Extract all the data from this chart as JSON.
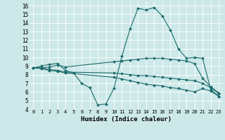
{
  "xlabel": "Humidex (Indice chaleur)",
  "xlim": [
    -0.5,
    23.5
  ],
  "ylim": [
    4,
    16.5
  ],
  "xticks": [
    0,
    1,
    2,
    3,
    4,
    5,
    6,
    7,
    8,
    9,
    10,
    11,
    12,
    13,
    14,
    15,
    16,
    17,
    18,
    19,
    20,
    21,
    22,
    23
  ],
  "yticks": [
    4,
    5,
    6,
    7,
    8,
    9,
    10,
    11,
    12,
    13,
    14,
    15,
    16
  ],
  "bg_color": "#cde8e8",
  "line_color": "#1a6b6b",
  "grid_color": "#ffffff",
  "lines": [
    {
      "x": [
        0,
        1,
        2,
        3,
        4,
        5,
        6,
        7,
        8,
        9,
        10,
        11,
        12,
        13,
        14,
        15,
        16,
        17,
        18,
        19,
        20,
        21,
        22,
        23
      ],
      "y": [
        8.8,
        9.0,
        9.2,
        9.3,
        8.5,
        8.2,
        7.0,
        6.5,
        4.5,
        4.6,
        6.4,
        10.2,
        13.3,
        15.7,
        15.5,
        15.8,
        14.8,
        13.2,
        11.0,
        9.9,
        10.0,
        9.9,
        6.3,
        5.5
      ]
    },
    {
      "x": [
        0,
        1,
        2,
        3,
        4,
        10,
        11,
        12,
        13,
        14,
        15,
        16,
        17,
        18,
        19,
        20,
        21,
        22,
        23
      ],
      "y": [
        8.8,
        8.8,
        8.9,
        9.1,
        8.9,
        9.5,
        9.6,
        9.7,
        9.8,
        9.9,
        9.9,
        9.9,
        9.8,
        9.7,
        9.6,
        9.3,
        7.6,
        6.6,
        5.9
      ]
    },
    {
      "x": [
        0,
        1,
        2,
        3,
        4,
        10,
        11,
        12,
        13,
        14,
        15,
        16,
        17,
        18,
        19,
        20,
        21,
        22,
        23
      ],
      "y": [
        8.8,
        8.8,
        8.6,
        8.5,
        8.3,
        8.2,
        8.1,
        8.0,
        7.9,
        7.9,
        7.8,
        7.7,
        7.6,
        7.5,
        7.4,
        7.3,
        7.0,
        6.5,
        5.8
      ]
    },
    {
      "x": [
        0,
        1,
        2,
        3,
        4,
        10,
        11,
        12,
        13,
        14,
        15,
        16,
        17,
        18,
        19,
        20,
        21,
        22,
        23
      ],
      "y": [
        8.8,
        8.7,
        8.5,
        8.4,
        8.2,
        7.7,
        7.5,
        7.3,
        7.1,
        6.9,
        6.8,
        6.7,
        6.5,
        6.4,
        6.2,
        6.0,
        6.4,
        6.1,
        5.5
      ]
    }
  ]
}
